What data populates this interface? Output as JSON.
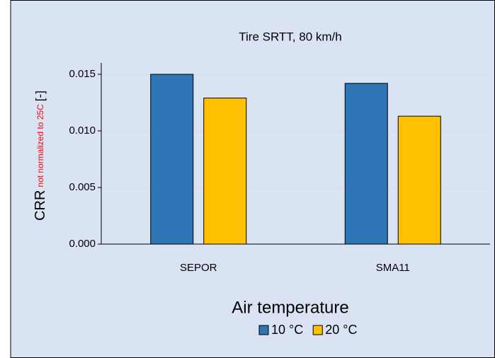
{
  "chart_data": {
    "type": "bar",
    "title": "Tire SRTT, 80 km/h",
    "y_label": "CRR",
    "y_label_note": "not normalized to 25C",
    "y_label_unit": "[-]",
    "x_label": "Air temperature",
    "categories": [
      "SEPOR",
      "SMA11"
    ],
    "series": [
      {
        "name": "10 °C",
        "color": "#2e75b6",
        "values": [
          0.015,
          0.0142
        ]
      },
      {
        "name": "20 °C",
        "color": "#ffc000",
        "values": [
          0.0129,
          0.0113
        ]
      }
    ],
    "ylim": [
      0,
      0.016
    ],
    "yticks": [
      {
        "value": 0,
        "label": "0.000"
      },
      0.005,
      {
        "value": 0.01,
        "label": "0.010"
      },
      0.015
    ],
    "grid": true,
    "legend": "bottom"
  }
}
